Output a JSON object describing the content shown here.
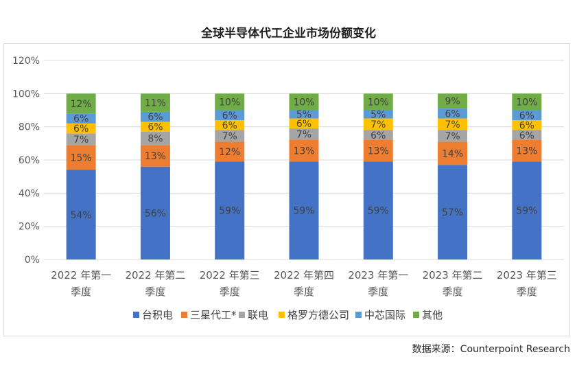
{
  "title": "全球半导体代工企业市场份额变化",
  "source": "数据来源：Counterpoint Research",
  "colors": {
    "台积电": "#4472c4",
    "三星代工*": "#ed7d31",
    "联电": "#a5a5a5",
    "格罗方德公司": "#ffc000",
    "中芯国际": "#5b9bd5",
    "其他": "#70ad47"
  },
  "chart_data": {
    "type": "bar",
    "stacked": true,
    "title": "全球半导体代工企业市场份额变化",
    "categories": [
      [
        "2022 年第一",
        "季度"
      ],
      [
        "2022 年第二",
        "季度"
      ],
      [
        "2022 年第三",
        "季度"
      ],
      [
        "2022 年第四",
        "季度"
      ],
      [
        "2023 年第一",
        "季度"
      ],
      [
        "2023 年第二",
        "季度"
      ],
      [
        "2023 年第三",
        "季度"
      ]
    ],
    "series": [
      {
        "name": "台积电",
        "values": [
          54,
          56,
          59,
          59,
          59,
          57,
          59
        ]
      },
      {
        "name": "三星代工*",
        "values": [
          15,
          13,
          12,
          13,
          13,
          14,
          13
        ]
      },
      {
        "name": "联电",
        "values": [
          7,
          8,
          7,
          7,
          6,
          7,
          6
        ]
      },
      {
        "name": "格罗方德公司",
        "values": [
          6,
          6,
          6,
          6,
          7,
          7,
          6
        ]
      },
      {
        "name": "中芯国际",
        "values": [
          6,
          6,
          6,
          5,
          5,
          6,
          6
        ]
      },
      {
        "name": "其他",
        "values": [
          12,
          11,
          10,
          10,
          10,
          9,
          10
        ]
      }
    ],
    "ylim": [
      0,
      120
    ],
    "yticks": [
      0,
      20,
      40,
      60,
      80,
      100,
      120
    ],
    "ytick_suffix": "%",
    "label_suffix": "%",
    "grid": true,
    "legend": "bottom"
  }
}
